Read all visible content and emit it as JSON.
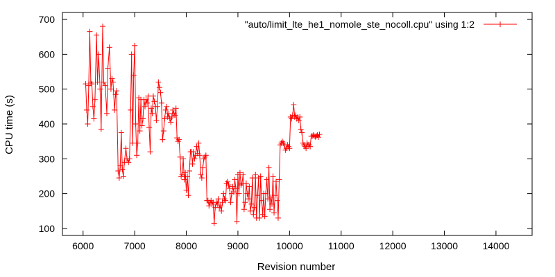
{
  "chart_data": {
    "type": "line",
    "title": "",
    "xlabel": "Revision number",
    "ylabel": "CPU time (s)",
    "xlim": [
      5600,
      14700
    ],
    "ylim": [
      80,
      720
    ],
    "xticks": [
      6000,
      7000,
      8000,
      9000,
      10000,
      11000,
      12000,
      13000,
      14000
    ],
    "yticks": [
      100,
      200,
      300,
      400,
      500,
      600,
      700
    ],
    "grid": false,
    "legend_position": "top-right",
    "colors": {
      "series": "#ff0000",
      "frame": "#000000"
    },
    "series": [
      {
        "name": "\"auto/limit_lte_he1_nomole_ste_nocoll.cpu\" using 1:2",
        "marker": "plus",
        "points": [
          [
            6050,
            515
          ],
          [
            6070,
            440
          ],
          [
            6090,
            400
          ],
          [
            6110,
            510
          ],
          [
            6130,
            665
          ],
          [
            6150,
            520
          ],
          [
            6170,
            515
          ],
          [
            6190,
            450
          ],
          [
            6210,
            415
          ],
          [
            6230,
            470
          ],
          [
            6260,
            655
          ],
          [
            6280,
            520
          ],
          [
            6300,
            600
          ],
          [
            6330,
            500
          ],
          [
            6350,
            385
          ],
          [
            6380,
            680
          ],
          [
            6400,
            520
          ],
          [
            6430,
            510
          ],
          [
            6460,
            430
          ],
          [
            6480,
            560
          ],
          [
            6510,
            620
          ],
          [
            6540,
            500
          ],
          [
            6560,
            530
          ],
          [
            6580,
            520
          ],
          [
            6610,
            440
          ],
          [
            6630,
            485
          ],
          [
            6650,
            495
          ],
          [
            6680,
            265
          ],
          [
            6700,
            245
          ],
          [
            6720,
            280
          ],
          [
            6740,
            375
          ],
          [
            6760,
            270
          ],
          [
            6780,
            250
          ],
          [
            6800,
            290
          ],
          [
            6830,
            330
          ],
          [
            6850,
            300
          ],
          [
            6880,
            290
          ],
          [
            6900,
            300
          ],
          [
            6920,
            440
          ],
          [
            6940,
            600
          ],
          [
            6960,
            345
          ],
          [
            6980,
            540
          ],
          [
            7000,
            625
          ],
          [
            7020,
            400
          ],
          [
            7040,
            310
          ],
          [
            7060,
            345
          ],
          [
            7080,
            475
          ],
          [
            7100,
            380
          ],
          [
            7120,
            470
          ],
          [
            7140,
            395
          ],
          [
            7160,
            415
          ],
          [
            7180,
            470
          ],
          [
            7200,
            450
          ],
          [
            7220,
            470
          ],
          [
            7240,
            460
          ],
          [
            7260,
            480
          ],
          [
            7280,
            390
          ],
          [
            7300,
            320
          ],
          [
            7320,
            445
          ],
          [
            7340,
            430
          ],
          [
            7360,
            480
          ],
          [
            7380,
            465
          ],
          [
            7400,
            450
          ],
          [
            7420,
            410
          ],
          [
            7440,
            450
          ],
          [
            7460,
            520
          ],
          [
            7480,
            505
          ],
          [
            7500,
            490
          ],
          [
            7520,
            460
          ],
          [
            7540,
            355
          ],
          [
            7560,
            380
          ],
          [
            7580,
            415
          ],
          [
            7600,
            440
          ],
          [
            7620,
            450
          ],
          [
            7640,
            420
          ],
          [
            7660,
            430
          ],
          [
            7680,
            415
          ],
          [
            7700,
            405
          ],
          [
            7720,
            420
          ],
          [
            7740,
            440
          ],
          [
            7760,
            430
          ],
          [
            7780,
            425
          ],
          [
            7800,
            445
          ],
          [
            7820,
            360
          ],
          [
            7840,
            350
          ],
          [
            7860,
            355
          ],
          [
            7880,
            305
          ],
          [
            7900,
            250
          ],
          [
            7920,
            255
          ],
          [
            7940,
            300
          ],
          [
            7960,
            240
          ],
          [
            7980,
            260
          ],
          [
            8000,
            210
          ],
          [
            8020,
            250
          ],
          [
            8040,
            195
          ],
          [
            8060,
            265
          ],
          [
            8080,
            320
          ],
          [
            8100,
            320
          ],
          [
            8120,
            285
          ],
          [
            8140,
            320
          ],
          [
            8160,
            300
          ],
          [
            8180,
            310
          ],
          [
            8200,
            335
          ],
          [
            8220,
            315
          ],
          [
            8240,
            345
          ],
          [
            8260,
            310
          ],
          [
            8280,
            255
          ],
          [
            8300,
            245
          ],
          [
            8320,
            275
          ],
          [
            8340,
            300
          ],
          [
            8360,
            305
          ],
          [
            8380,
            310
          ],
          [
            8400,
            180
          ],
          [
            8420,
            180
          ],
          [
            8440,
            165
          ],
          [
            8460,
            175
          ],
          [
            8480,
            180
          ],
          [
            8500,
            170
          ],
          [
            8520,
            175
          ],
          [
            8540,
            115
          ],
          [
            8560,
            160
          ],
          [
            8580,
            175
          ],
          [
            8600,
            170
          ],
          [
            8620,
            185
          ],
          [
            8640,
            160
          ],
          [
            8660,
            165
          ],
          [
            8680,
            150
          ],
          [
            8700,
            175
          ],
          [
            8720,
            200
          ],
          [
            8740,
            185
          ],
          [
            8760,
            180
          ],
          [
            8780,
            230
          ],
          [
            8800,
            235
          ],
          [
            8820,
            225
          ],
          [
            8840,
            215
          ],
          [
            8860,
            175
          ],
          [
            8880,
            200
          ],
          [
            8900,
            220
          ],
          [
            8920,
            205
          ],
          [
            8940,
            240
          ],
          [
            8960,
            215
          ],
          [
            8980,
            120
          ],
          [
            9000,
            255
          ],
          [
            9020,
            200
          ],
          [
            9040,
            260
          ],
          [
            9060,
            225
          ],
          [
            9080,
            230
          ],
          [
            9100,
            255
          ],
          [
            9120,
            155
          ],
          [
            9140,
            175
          ],
          [
            9160,
            230
          ],
          [
            9180,
            200
          ],
          [
            9200,
            185
          ],
          [
            9220,
            220
          ],
          [
            9240,
            150
          ],
          [
            9260,
            170
          ],
          [
            9280,
            245
          ],
          [
            9300,
            140
          ],
          [
            9320,
            160
          ],
          [
            9340,
            255
          ],
          [
            9360,
            130
          ],
          [
            9380,
            195
          ],
          [
            9400,
            245
          ],
          [
            9420,
            130
          ],
          [
            9440,
            250
          ],
          [
            9460,
            180
          ],
          [
            9480,
            140
          ],
          [
            9500,
            200
          ],
          [
            9520,
            135
          ],
          [
            9540,
            200
          ],
          [
            9560,
            240
          ],
          [
            9580,
            185
          ],
          [
            9600,
            275
          ],
          [
            9620,
            155
          ],
          [
            9640,
            190
          ],
          [
            9660,
            170
          ],
          [
            9680,
            250
          ],
          [
            9700,
            145
          ],
          [
            9720,
            195
          ],
          [
            9740,
            235
          ],
          [
            9760,
            180
          ],
          [
            9780,
            130
          ],
          [
            9800,
            240
          ],
          [
            9820,
            340
          ],
          [
            9840,
            345
          ],
          [
            9860,
            350
          ],
          [
            9880,
            345
          ],
          [
            9900,
            340
          ],
          [
            9920,
            325
          ],
          [
            9940,
            330
          ],
          [
            9960,
            340
          ],
          [
            9980,
            335
          ],
          [
            10000,
            330
          ],
          [
            10020,
            420
          ],
          [
            10040,
            415
          ],
          [
            10060,
            425
          ],
          [
            10080,
            455
          ],
          [
            10100,
            420
          ],
          [
            10120,
            425
          ],
          [
            10140,
            415
          ],
          [
            10160,
            420
          ],
          [
            10180,
            410
          ],
          [
            10200,
            420
          ],
          [
            10220,
            385
          ],
          [
            10240,
            375
          ],
          [
            10260,
            345
          ],
          [
            10280,
            340
          ],
          [
            10300,
            335
          ],
          [
            10320,
            330
          ],
          [
            10340,
            345
          ],
          [
            10360,
            340
          ],
          [
            10380,
            340
          ],
          [
            10400,
            335
          ],
          [
            10420,
            365
          ],
          [
            10440,
            365
          ],
          [
            10460,
            368
          ],
          [
            10480,
            365
          ],
          [
            10500,
            363
          ],
          [
            10520,
            366
          ],
          [
            10540,
            368
          ],
          [
            10560,
            362
          ],
          [
            10580,
            370
          ]
        ]
      }
    ]
  }
}
